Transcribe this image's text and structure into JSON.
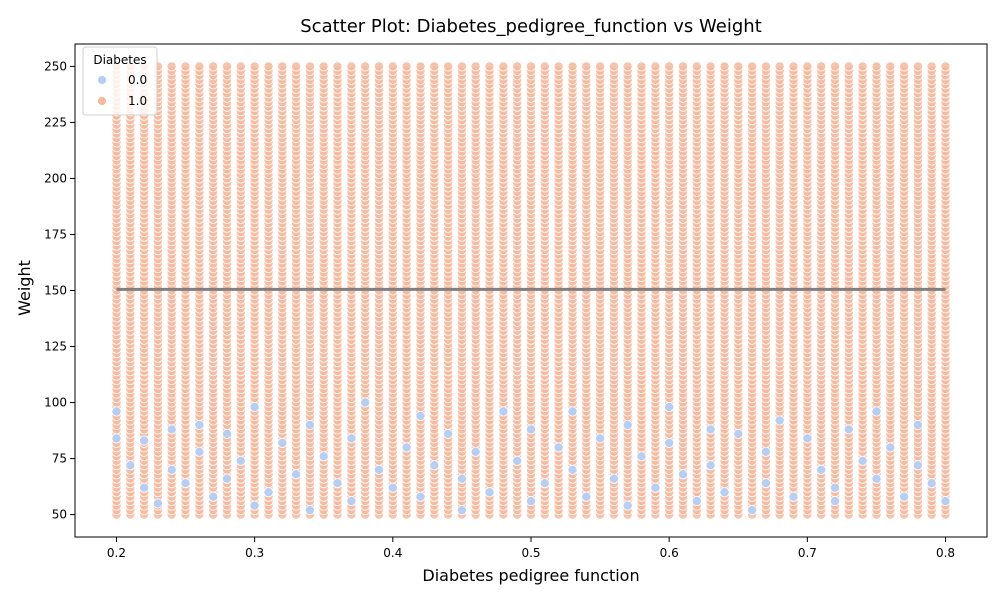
{
  "chart_data": {
    "type": "scatter",
    "title": "Scatter Plot: Diabetes_pedigree_function vs Weight",
    "xlabel": "Diabetes pedigree function",
    "ylabel": "Weight",
    "xlim": [
      0.17,
      0.83
    ],
    "ylim": [
      40,
      260
    ],
    "xticks": [
      0.2,
      0.3,
      0.4,
      0.5,
      0.6,
      0.7,
      0.8
    ],
    "xtick_labels": [
      "0.2",
      "0.3",
      "0.4",
      "0.5",
      "0.6",
      "0.7",
      "0.8"
    ],
    "yticks": [
      50,
      75,
      100,
      125,
      150,
      175,
      200,
      225,
      250
    ],
    "ytick_labels": [
      "50",
      "75",
      "100",
      "125",
      "150",
      "175",
      "200",
      "225",
      "250"
    ],
    "grid": false,
    "legend": {
      "title": "Diabetes",
      "placement": "upper-left",
      "entries": [
        "0.0",
        "1.0"
      ]
    },
    "x_values": [
      0.2,
      0.21,
      0.22,
      0.23,
      0.24,
      0.25,
      0.26,
      0.27,
      0.28,
      0.29,
      0.3,
      0.31,
      0.32,
      0.33,
      0.34,
      0.35,
      0.36,
      0.37,
      0.38,
      0.39,
      0.4,
      0.41,
      0.42,
      0.43,
      0.44,
      0.45,
      0.46,
      0.47,
      0.48,
      0.49,
      0.5,
      0.51,
      0.52,
      0.53,
      0.54,
      0.55,
      0.56,
      0.57,
      0.58,
      0.59,
      0.6,
      0.61,
      0.62,
      0.63,
      0.64,
      0.65,
      0.66,
      0.67,
      0.68,
      0.69,
      0.7,
      0.71,
      0.72,
      0.73,
      0.74,
      0.75,
      0.76,
      0.77,
      0.78,
      0.79,
      0.8
    ],
    "series": [
      {
        "name": "1.0",
        "color": "#f7b89c",
        "y_range": [
          50,
          250
        ],
        "y_step": 2
      },
      {
        "name": "0.0",
        "color": "#b3cdf7",
        "points": [
          [
            0.2,
            96
          ],
          [
            0.2,
            84
          ],
          [
            0.21,
            72
          ],
          [
            0.22,
            62
          ],
          [
            0.22,
            83
          ],
          [
            0.23,
            55
          ],
          [
            0.24,
            70
          ],
          [
            0.24,
            88
          ],
          [
            0.25,
            64
          ],
          [
            0.26,
            90
          ],
          [
            0.26,
            78
          ],
          [
            0.27,
            58
          ],
          [
            0.28,
            66
          ],
          [
            0.28,
            86
          ],
          [
            0.29,
            74
          ],
          [
            0.3,
            98
          ],
          [
            0.3,
            54
          ],
          [
            0.31,
            60
          ],
          [
            0.32,
            82
          ],
          [
            0.33,
            68
          ],
          [
            0.34,
            90
          ],
          [
            0.34,
            52
          ],
          [
            0.35,
            76
          ],
          [
            0.36,
            64
          ],
          [
            0.37,
            84
          ],
          [
            0.37,
            56
          ],
          [
            0.38,
            100
          ],
          [
            0.39,
            70
          ],
          [
            0.4,
            62
          ],
          [
            0.41,
            80
          ],
          [
            0.42,
            94
          ],
          [
            0.42,
            58
          ],
          [
            0.43,
            72
          ],
          [
            0.44,
            86
          ],
          [
            0.45,
            66
          ],
          [
            0.45,
            52
          ],
          [
            0.46,
            78
          ],
          [
            0.47,
            60
          ],
          [
            0.48,
            96
          ],
          [
            0.49,
            74
          ],
          [
            0.5,
            56
          ],
          [
            0.5,
            88
          ],
          [
            0.51,
            64
          ],
          [
            0.52,
            80
          ],
          [
            0.53,
            70
          ],
          [
            0.53,
            96
          ],
          [
            0.54,
            58
          ],
          [
            0.55,
            84
          ],
          [
            0.56,
            66
          ],
          [
            0.57,
            90
          ],
          [
            0.57,
            54
          ],
          [
            0.58,
            76
          ],
          [
            0.59,
            62
          ],
          [
            0.6,
            98
          ],
          [
            0.6,
            82
          ],
          [
            0.61,
            68
          ],
          [
            0.62,
            56
          ],
          [
            0.63,
            88
          ],
          [
            0.63,
            72
          ],
          [
            0.64,
            60
          ],
          [
            0.65,
            86
          ],
          [
            0.66,
            52
          ],
          [
            0.67,
            78
          ],
          [
            0.67,
            64
          ],
          [
            0.68,
            92
          ],
          [
            0.69,
            58
          ],
          [
            0.7,
            84
          ],
          [
            0.71,
            70
          ],
          [
            0.72,
            62
          ],
          [
            0.72,
            56
          ],
          [
            0.73,
            88
          ],
          [
            0.74,
            74
          ],
          [
            0.75,
            96
          ],
          [
            0.75,
            66
          ],
          [
            0.76,
            80
          ],
          [
            0.77,
            58
          ],
          [
            0.78,
            90
          ],
          [
            0.78,
            72
          ],
          [
            0.79,
            64
          ],
          [
            0.8,
            56
          ]
        ]
      }
    ],
    "trend_line": {
      "color": "#808080",
      "x": [
        0.2,
        0.8
      ],
      "y": [
        150.5,
        150.5
      ]
    }
  }
}
